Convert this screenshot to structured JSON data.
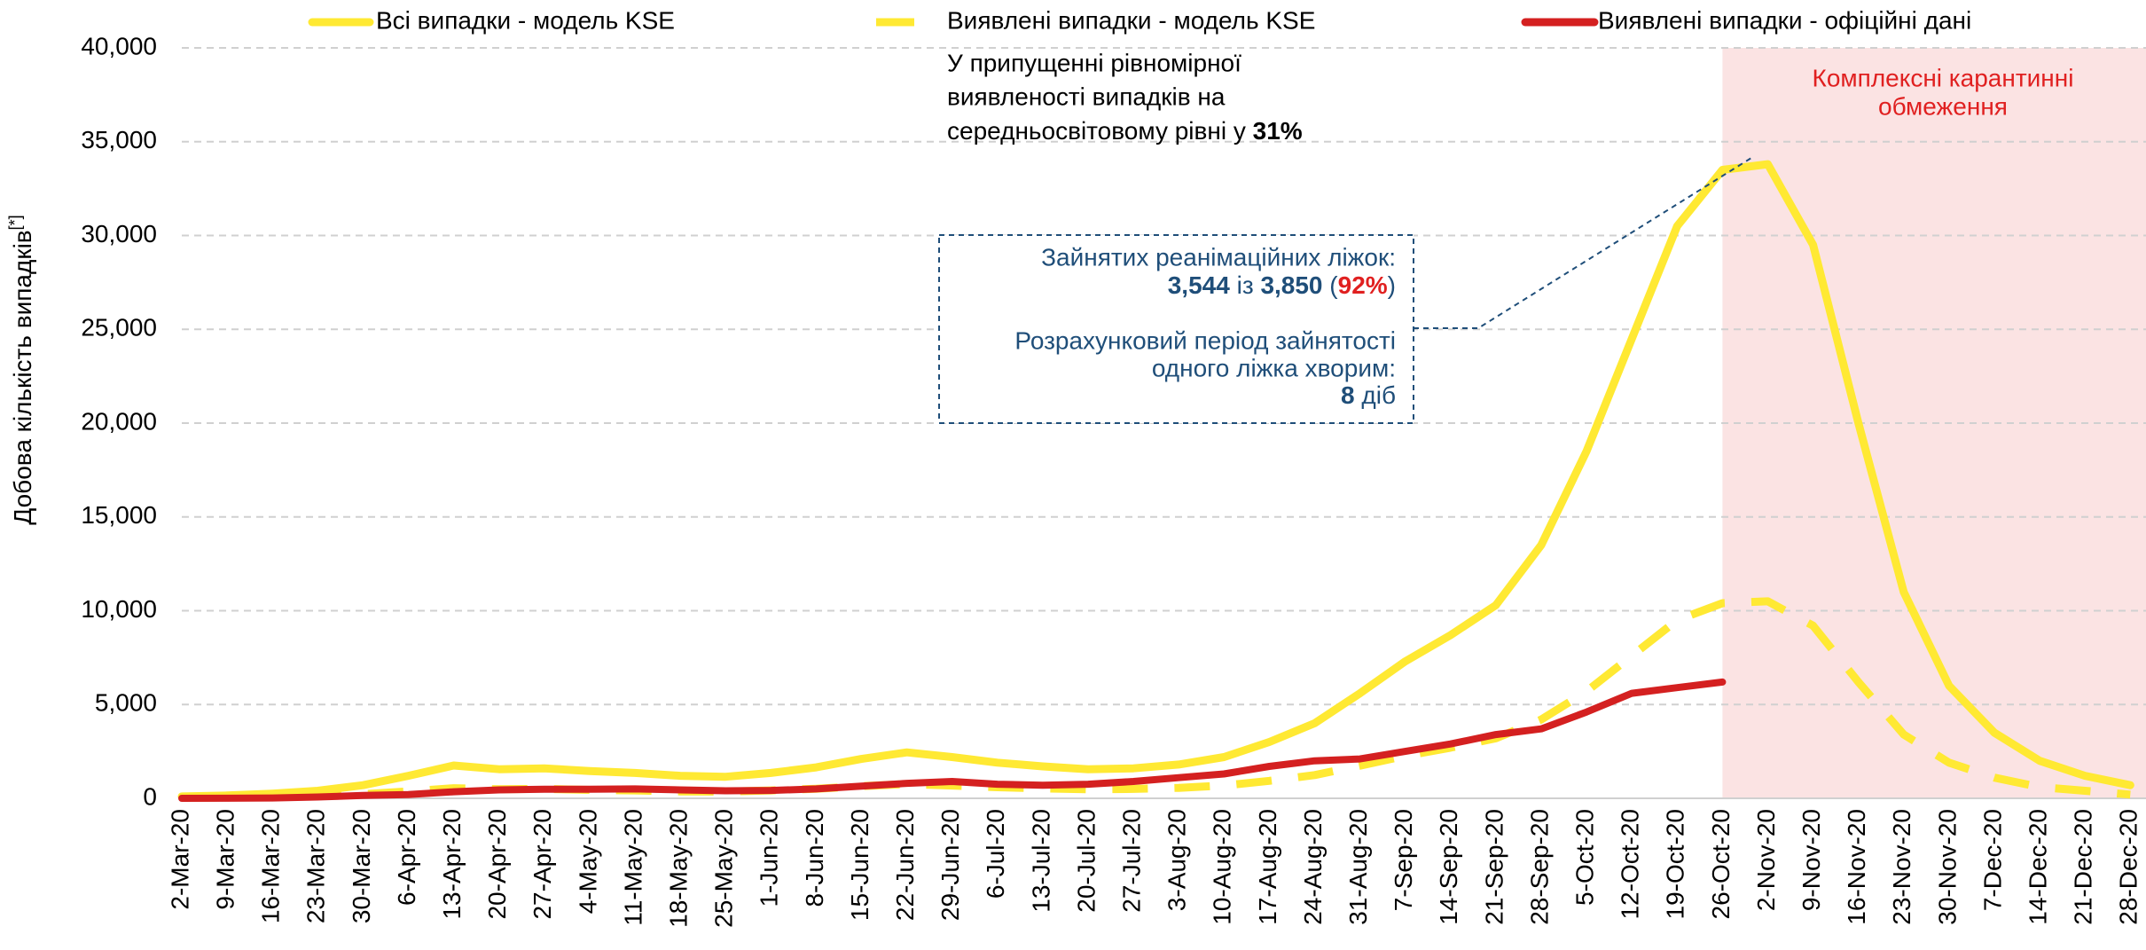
{
  "chart_data": {
    "type": "line",
    "y_label": "Добова кількість випадків",
    "y_label_sup": "[*]",
    "categories": [
      "2-Mar-20",
      "9-Mar-20",
      "16-Mar-20",
      "23-Mar-20",
      "30-Mar-20",
      "6-Apr-20",
      "13-Apr-20",
      "20-Apr-20",
      "27-Apr-20",
      "4-May-20",
      "11-May-20",
      "18-May-20",
      "25-May-20",
      "1-Jun-20",
      "8-Jun-20",
      "15-Jun-20",
      "22-Jun-20",
      "29-Jun-20",
      "6-Jul-20",
      "13-Jul-20",
      "20-Jul-20",
      "27-Jul-20",
      "3-Aug-20",
      "10-Aug-20",
      "17-Aug-20",
      "24-Aug-20",
      "31-Aug-20",
      "7-Sep-20",
      "14-Sep-20",
      "21-Sep-20",
      "28-Sep-20",
      "5-Oct-20",
      "12-Oct-20",
      "19-Oct-20",
      "26-Oct-20",
      "2-Nov-20",
      "9-Nov-20",
      "16-Nov-20",
      "23-Nov-20",
      "30-Nov-20",
      "7-Dec-20",
      "14-Dec-20",
      "21-Dec-20",
      "28-Dec-20"
    ],
    "series": [
      {
        "name": "Всі випадки - модель KSE",
        "color": "#ffe933",
        "dash": false,
        "values": [
          100,
          150,
          250,
          400,
          700,
          1200,
          1750,
          1550,
          1600,
          1450,
          1350,
          1200,
          1150,
          1350,
          1650,
          2100,
          2450,
          2200,
          1900,
          1700,
          1550,
          1600,
          1800,
          2200,
          3000,
          4000,
          5600,
          7300,
          8700,
          10300,
          13500,
          18500,
          24500,
          30500,
          33500,
          33800,
          29500,
          20000,
          11000,
          6000,
          3500,
          2000,
          1200,
          700
        ]
      },
      {
        "name": "Виявлені випадки - модель KSE",
        "color": "#ffe933",
        "dash": true,
        "values": [
          30,
          45,
          80,
          120,
          220,
          370,
          540,
          480,
          500,
          450,
          420,
          370,
          360,
          420,
          510,
          650,
          760,
          680,
          590,
          530,
          480,
          500,
          560,
          680,
          930,
          1240,
          1740,
          2260,
          2700,
          3200,
          4200,
          5700,
          7600,
          9500,
          10400,
          10500,
          9200,
          6200,
          3400,
          1900,
          1100,
          600,
          400,
          200
        ]
      },
      {
        "name": "Виявлені випадки - офіційні дані",
        "color": "#d42020",
        "dash": false,
        "values": [
          0,
          5,
          20,
          70,
          150,
          200,
          350,
          450,
          480,
          480,
          500,
          450,
          400,
          420,
          500,
          650,
          800,
          900,
          750,
          700,
          750,
          900,
          1100,
          1300,
          1700,
          2000,
          2100,
          2500,
          2900,
          3400,
          3700,
          4600,
          5600,
          5900,
          6200,
          null,
          null,
          null,
          null,
          null,
          null,
          null,
          null,
          null
        ]
      }
    ],
    "ylim": [
      0,
      40000
    ],
    "yticks": [
      0,
      {
        "value": 5000,
        "label": "5,000"
      },
      {
        "value": 10000,
        "label": "10,000"
      },
      {
        "value": 15000,
        "label": "15,000"
      },
      {
        "value": 20000,
        "label": "20,000"
      },
      {
        "value": 25000,
        "label": "25,000"
      },
      {
        "value": 30000,
        "label": "30,000"
      },
      {
        "value": 35000,
        "label": "35,000"
      },
      {
        "value": 40000,
        "label": "40,000"
      }
    ],
    "grid": true,
    "legend": "top",
    "shade": {
      "from": "26-Oct-20",
      "color": "#fbe3e3",
      "label": [
        "Комплексні карантинні",
        "обмеження"
      ],
      "label_color": "#e02020"
    },
    "note": [
      "У припущенні рівномірної",
      "виявленості випадків на",
      "середньосвітовому рівні у ",
      "31%"
    ],
    "box": {
      "line1": "Зайнятих реанімаційних ліжок:",
      "a": "3,544",
      "mid": " із ",
      "b": "3,850",
      "open": " (",
      "pct": "92%",
      "close": ")",
      "line3": "Розрахунковий період зайнятості",
      "line4": "одного ліжка хворим:",
      "days": "8",
      "days_unit": " діб"
    }
  }
}
